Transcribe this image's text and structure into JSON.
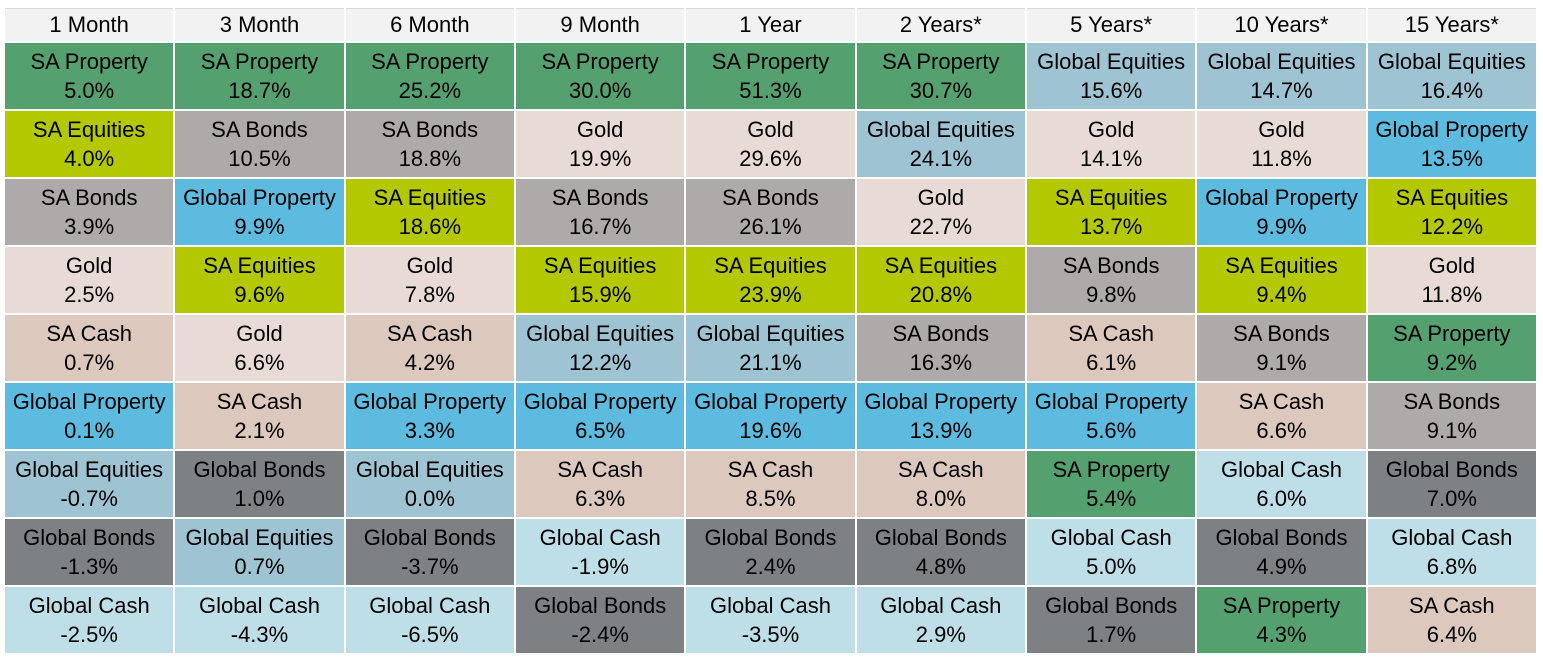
{
  "colors": {
    "SA Property": "#55a06f",
    "SA Equities": "#b4c800",
    "SA Bonds": "#aeaaaa",
    "Gold": "#e8dbd5",
    "SA Cash": "#dcc8bc",
    "Global Property": "#5ebbe0",
    "Global Equities": "#9ec4d4",
    "Global Bonds": "#7e8184",
    "Global Cash": "#bfdfe8"
  },
  "chart_data": {
    "type": "table",
    "columns": [
      {
        "header": "1 Month",
        "cells": [
          {
            "asset": "SA Property",
            "value": "5.0%"
          },
          {
            "asset": "SA Equities",
            "value": "4.0%"
          },
          {
            "asset": "SA Bonds",
            "value": "3.9%"
          },
          {
            "asset": "Gold",
            "value": "2.5%"
          },
          {
            "asset": "SA Cash",
            "value": "0.7%"
          },
          {
            "asset": "Global Property",
            "value": "0.1%"
          },
          {
            "asset": "Global Equities",
            "value": "-0.7%"
          },
          {
            "asset": "Global Bonds",
            "value": "-1.3%"
          },
          {
            "asset": "Global Cash",
            "value": "-2.5%"
          }
        ]
      },
      {
        "header": "3 Month",
        "cells": [
          {
            "asset": "SA Property",
            "value": "18.7%"
          },
          {
            "asset": "SA Bonds",
            "value": "10.5%"
          },
          {
            "asset": "Global Property",
            "value": "9.9%"
          },
          {
            "asset": "SA Equities",
            "value": "9.6%"
          },
          {
            "asset": "Gold",
            "value": "6.6%"
          },
          {
            "asset": "SA Cash",
            "value": "2.1%"
          },
          {
            "asset": "Global Bonds",
            "value": "1.0%"
          },
          {
            "asset": "Global Equities",
            "value": "0.7%"
          },
          {
            "asset": "Global Cash",
            "value": "-4.3%"
          }
        ]
      },
      {
        "header": "6 Month",
        "cells": [
          {
            "asset": "SA Property",
            "value": "25.2%"
          },
          {
            "asset": "SA Bonds",
            "value": "18.8%"
          },
          {
            "asset": "SA Equities",
            "value": "18.6%"
          },
          {
            "asset": "Gold",
            "value": "7.8%"
          },
          {
            "asset": "SA Cash",
            "value": "4.2%"
          },
          {
            "asset": "Global Property",
            "value": "3.3%"
          },
          {
            "asset": "Global Equities",
            "value": "0.0%"
          },
          {
            "asset": "Global Bonds",
            "value": "-3.7%"
          },
          {
            "asset": "Global Cash",
            "value": "-6.5%"
          }
        ]
      },
      {
        "header": "9 Month",
        "cells": [
          {
            "asset": "SA Property",
            "value": "30.0%"
          },
          {
            "asset": "Gold",
            "value": "19.9%"
          },
          {
            "asset": "SA Bonds",
            "value": "16.7%"
          },
          {
            "asset": "SA Equities",
            "value": "15.9%"
          },
          {
            "asset": "Global Equities",
            "value": "12.2%"
          },
          {
            "asset": "Global Property",
            "value": "6.5%"
          },
          {
            "asset": "SA Cash",
            "value": "6.3%"
          },
          {
            "asset": "Global Cash",
            "value": "-1.9%"
          },
          {
            "asset": "Global Bonds",
            "value": "-2.4%"
          }
        ]
      },
      {
        "header": "1 Year",
        "cells": [
          {
            "asset": "SA Property",
            "value": "51.3%"
          },
          {
            "asset": "Gold",
            "value": "29.6%"
          },
          {
            "asset": "SA Bonds",
            "value": "26.1%"
          },
          {
            "asset": "SA Equities",
            "value": "23.9%"
          },
          {
            "asset": "Global Equities",
            "value": "21.1%"
          },
          {
            "asset": "Global Property",
            "value": "19.6%"
          },
          {
            "asset": "SA Cash",
            "value": "8.5%"
          },
          {
            "asset": "Global Bonds",
            "value": "2.4%"
          },
          {
            "asset": "Global Cash",
            "value": "-3.5%"
          }
        ]
      },
      {
        "header": "2 Years*",
        "cells": [
          {
            "asset": "SA Property",
            "value": "30.7%"
          },
          {
            "asset": "Global Equities",
            "value": "24.1%"
          },
          {
            "asset": "Gold",
            "value": "22.7%"
          },
          {
            "asset": "SA Equities",
            "value": "20.8%"
          },
          {
            "asset": "SA Bonds",
            "value": "16.3%"
          },
          {
            "asset": "Global Property",
            "value": "13.9%"
          },
          {
            "asset": "SA Cash",
            "value": "8.0%"
          },
          {
            "asset": "Global Bonds",
            "value": "4.8%"
          },
          {
            "asset": "Global Cash",
            "value": "2.9%"
          }
        ]
      },
      {
        "header": "5 Years*",
        "cells": [
          {
            "asset": "Global Equities",
            "value": "15.6%"
          },
          {
            "asset": "Gold",
            "value": "14.1%"
          },
          {
            "asset": "SA Equities",
            "value": "13.7%"
          },
          {
            "asset": "SA Bonds",
            "value": "9.8%"
          },
          {
            "asset": "SA Cash",
            "value": "6.1%"
          },
          {
            "asset": "Global Property",
            "value": "5.6%"
          },
          {
            "asset": "SA Property",
            "value": "5.4%"
          },
          {
            "asset": "Global Cash",
            "value": "5.0%"
          },
          {
            "asset": "Global Bonds",
            "value": "1.7%"
          }
        ]
      },
      {
        "header": "10 Years*",
        "cells": [
          {
            "asset": "Global Equities",
            "value": "14.7%"
          },
          {
            "asset": "Gold",
            "value": "11.8%"
          },
          {
            "asset": "Global Property",
            "value": "9.9%"
          },
          {
            "asset": "SA Equities",
            "value": "9.4%"
          },
          {
            "asset": "SA Bonds",
            "value": "9.1%"
          },
          {
            "asset": "SA Cash",
            "value": "6.6%"
          },
          {
            "asset": "Global Cash",
            "value": "6.0%"
          },
          {
            "asset": "Global Bonds",
            "value": "4.9%"
          },
          {
            "asset": "SA Property",
            "value": "4.3%"
          }
        ]
      },
      {
        "header": "15 Years*",
        "cells": [
          {
            "asset": "Global Equities",
            "value": "16.4%"
          },
          {
            "asset": "Global Property",
            "value": "13.5%"
          },
          {
            "asset": "SA Equities",
            "value": "12.2%"
          },
          {
            "asset": "Gold",
            "value": "11.8%"
          },
          {
            "asset": "SA Property",
            "value": "9.2%"
          },
          {
            "asset": "SA Bonds",
            "value": "9.1%"
          },
          {
            "asset": "Global Bonds",
            "value": "7.0%"
          },
          {
            "asset": "Global Cash",
            "value": "6.8%"
          },
          {
            "asset": "SA Cash",
            "value": "6.4%"
          }
        ]
      }
    ]
  }
}
